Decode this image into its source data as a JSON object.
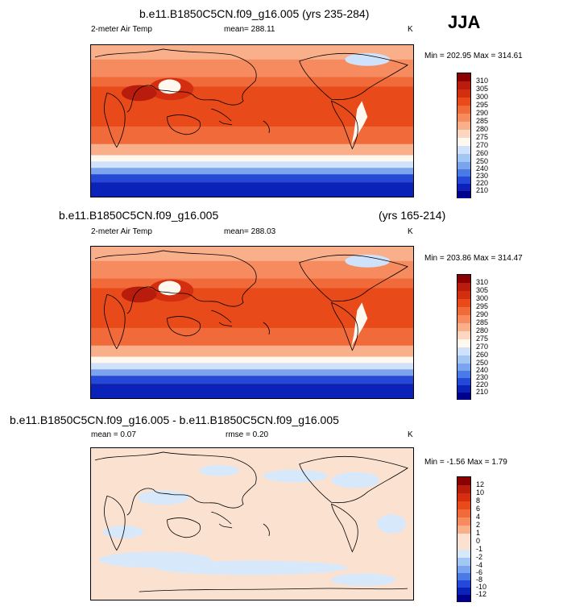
{
  "season": "JJA",
  "panels": [
    {
      "title": "b.e11.B1850C5CN.f09_g16.005 (yrs 235-284)",
      "title_suffix": "",
      "left_label": "2-meter Air Temp",
      "center_label": "mean= 288.11",
      "units": "K",
      "minmax": "Min = 202.95 Max = 314.61"
    },
    {
      "title": "b.e11.B1850C5CN.f09_g16.005",
      "title_suffix": "(yrs 165-214)",
      "left_label": "2-meter Air Temp",
      "center_label": "mean= 288.03",
      "units": "K",
      "minmax": "Min = 203.86 Max = 314.47"
    },
    {
      "title": "b.e11.B1850C5CN.f09_g16.005 - b.e11.B1850C5CN.f09_g16.005",
      "title_suffix": "",
      "left_label": "mean =   0.07",
      "center_label": "rmse =   0.20",
      "units": "K",
      "minmax": "Min =  -1.56 Max =   1.79"
    }
  ],
  "chart_data": [
    {
      "type": "heatmap",
      "title": "b.e11.B1850C5CN.f09_g16.005 (yrs 235-284)",
      "variable": "2-meter Air Temp",
      "units": "K",
      "mean": 288.11,
      "min": 202.95,
      "max": 314.61,
      "colorbar_levels": [
        310,
        305,
        300,
        295,
        290,
        285,
        280,
        275,
        270,
        260,
        250,
        240,
        230,
        220,
        210
      ],
      "colorbar_colors": [
        "#8b0000",
        "#b71c0c",
        "#d42e10",
        "#e84a1a",
        "#f06a3a",
        "#f58b5e",
        "#f9b08a",
        "#fbd6c0",
        "#fff8ee",
        "#cfe2fb",
        "#a4c6f4",
        "#7aa4ee",
        "#4a7ae6",
        "#2449d8",
        "#0b22b8",
        "#00008a"
      ]
    },
    {
      "type": "heatmap",
      "title": "b.e11.B1850C5CN.f09_g16.005 (yrs 165-214)",
      "variable": "2-meter Air Temp",
      "units": "K",
      "mean": 288.03,
      "min": 203.86,
      "max": 314.47,
      "colorbar_levels": [
        310,
        305,
        300,
        295,
        290,
        285,
        280,
        275,
        270,
        260,
        250,
        240,
        230,
        220,
        210
      ],
      "colorbar_colors": [
        "#8b0000",
        "#b71c0c",
        "#d42e10",
        "#e84a1a",
        "#f06a3a",
        "#f58b5e",
        "#f9b08a",
        "#fbd6c0",
        "#fff8ee",
        "#cfe2fb",
        "#a4c6f4",
        "#7aa4ee",
        "#4a7ae6",
        "#2449d8",
        "#0b22b8",
        "#00008a"
      ]
    },
    {
      "type": "heatmap",
      "title": "b.e11.B1850C5CN.f09_g16.005 - b.e11.B1850C5CN.f09_g16.005",
      "units": "K",
      "mean": 0.07,
      "rmse": 0.2,
      "min": -1.56,
      "max": 1.79,
      "colorbar_levels": [
        12,
        10,
        8,
        6,
        4,
        2,
        1,
        0,
        -1,
        -2,
        -4,
        -6,
        -8,
        -10,
        -12
      ],
      "colorbar_colors": [
        "#8b0000",
        "#b71c0c",
        "#d42e10",
        "#e84a1a",
        "#f06a3a",
        "#f58b5e",
        "#f9b08a",
        "#fbe2d0",
        "#fbe2d0",
        "#d8e8fb",
        "#a4c6f4",
        "#7aa4ee",
        "#4a7ae6",
        "#2449d8",
        "#0b22b8",
        "#00008a"
      ]
    }
  ]
}
